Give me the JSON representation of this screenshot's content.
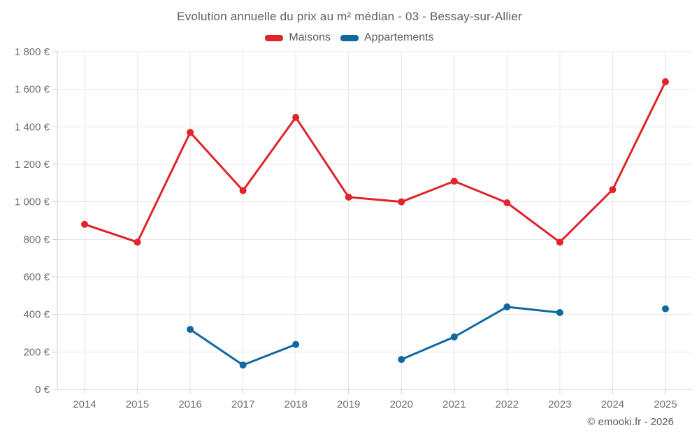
{
  "header": {
    "title": "Evolution annuelle du prix au m² médian - 03 - Bessay-sur-Allier"
  },
  "footer": {
    "credit": "© emooki.fr - 2026"
  },
  "colors": {
    "maisons": "#e02429",
    "appartements": "#11689e",
    "gridline": "#e7e7e7",
    "axis": "#cccccc",
    "tick_text": "#6e6e6e"
  },
  "chart_data": {
    "type": "line",
    "x": [
      2014,
      2015,
      2016,
      2017,
      2018,
      2019,
      2020,
      2021,
      2022,
      2023,
      2024,
      2025
    ],
    "series": [
      {
        "name": "Maisons",
        "color": "#e02429",
        "values": [
          880,
          785,
          1370,
          1060,
          1450,
          1025,
          1000,
          1110,
          995,
          785,
          1065,
          1640
        ]
      },
      {
        "name": "Appartements",
        "color": "#11689e",
        "values": [
          null,
          null,
          320,
          130,
          240,
          null,
          160,
          280,
          440,
          410,
          null,
          430
        ]
      }
    ],
    "title": "Evolution annuelle du prix au m² médian - 03 - Bessay-sur-Allier",
    "xlabel": "",
    "ylabel": "",
    "ylim": [
      0,
      1800
    ],
    "ytick_step": 200,
    "y_suffix": " €",
    "grid": true,
    "legend_position": "top",
    "gaps_note": "null = no data point for that year"
  }
}
